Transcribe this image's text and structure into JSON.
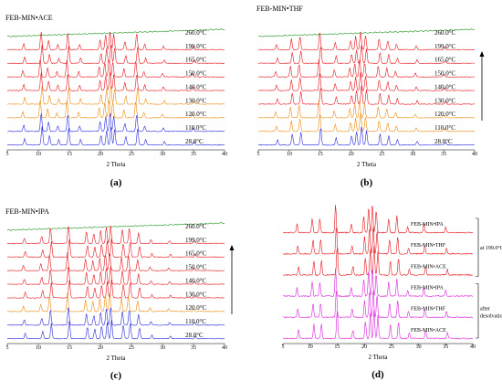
{
  "figure": {
    "panels": [
      {
        "id": "a",
        "sublabel": "(a)",
        "title": "FEB-MIN•ACE",
        "xlabel": "2 Theta",
        "ticks": [
          "5",
          "10",
          "15",
          "20",
          "25",
          "30",
          "35",
          "40"
        ],
        "traces": [
          {
            "label": "260.0°C",
            "color": "#1a8f1a",
            "amorphous": true
          },
          {
            "label": "199.0°C",
            "color": "#e8141c"
          },
          {
            "label": "165.0°C",
            "color": "#e8141c"
          },
          {
            "label": "150.0°C",
            "color": "#e8141c"
          },
          {
            "label": "140.0°C",
            "color": "#e8141c"
          },
          {
            "label": "130.0°C",
            "color": "#ee8a10"
          },
          {
            "label": "120.0°C",
            "color": "#ee8a10"
          },
          {
            "label": "110.0°C",
            "color": "#2a2ae0"
          },
          {
            "label": "28.0°C",
            "color": "#2a2ae0"
          }
        ],
        "peaks": [
          [
            7.5,
            0.35
          ],
          [
            10.3,
            1.0
          ],
          [
            11.5,
            0.5
          ],
          [
            13.0,
            0.3
          ],
          [
            14.6,
            0.95
          ],
          [
            16.5,
            0.3
          ],
          [
            19.8,
            0.55
          ],
          [
            20.7,
            0.8
          ],
          [
            21.4,
            1.0
          ],
          [
            22.0,
            0.85
          ],
          [
            23.8,
            0.45
          ],
          [
            25.7,
            0.9
          ],
          [
            27.0,
            0.3
          ],
          [
            30.0,
            0.2
          ],
          [
            34.8,
            0.2
          ]
        ]
      },
      {
        "id": "b",
        "sublabel": "(b)",
        "title": "FEB-MIN•THF",
        "xlabel": "2 Theta",
        "ticks": [
          "5",
          "10",
          "15",
          "20",
          "25",
          "30",
          "35",
          "40"
        ],
        "traces": [
          {
            "label": "260.0°C",
            "color": "#1a8f1a",
            "amorphous": true
          },
          {
            "label": "199.0°C",
            "color": "#e8141c"
          },
          {
            "label": "165.0°C",
            "color": "#e8141c"
          },
          {
            "label": "150.0°C",
            "color": "#e8141c"
          },
          {
            "label": "140.0°C",
            "color": "#e8141c"
          },
          {
            "label": "130.0°C",
            "color": "#e8141c"
          },
          {
            "label": "120.0°C",
            "color": "#ee8a10"
          },
          {
            "label": "110.0°C",
            "color": "#ee8a10"
          },
          {
            "label": "28.0°C",
            "color": "#2a2ae0"
          }
        ],
        "peaks": [
          [
            7.8,
            0.3
          ],
          [
            10.2,
            0.6
          ],
          [
            11.6,
            0.7
          ],
          [
            14.8,
            0.95
          ],
          [
            17.3,
            0.4
          ],
          [
            19.8,
            0.5
          ],
          [
            20.6,
            0.75
          ],
          [
            21.4,
            1.0
          ],
          [
            22.2,
            0.8
          ],
          [
            24.4,
            0.6
          ],
          [
            25.8,
            0.5
          ],
          [
            27.2,
            0.3
          ],
          [
            30.4,
            0.2
          ],
          [
            35.0,
            0.15
          ]
        ]
      },
      {
        "id": "c",
        "sublabel": "(c)",
        "title": "FEB-MIN•IPA",
        "xlabel": "2 Theta",
        "ticks": [
          "5",
          "10",
          "15",
          "20",
          "25",
          "30",
          "35",
          "40"
        ],
        "traces": [
          {
            "label": "260.0°C",
            "color": "#1a8f1a",
            "amorphous": true
          },
          {
            "label": "199.0°C",
            "color": "#e8141c"
          },
          {
            "label": "165.0°C",
            "color": "#e8141c"
          },
          {
            "label": "150.0°C",
            "color": "#e8141c"
          },
          {
            "label": "140.0°C",
            "color": "#e8141c"
          },
          {
            "label": "130.0°C",
            "color": "#e8141c"
          },
          {
            "label": "120.0°C",
            "color": "#ee8a10"
          },
          {
            "label": "110.0°C",
            "color": "#2a2ae0"
          },
          {
            "label": "28.0°C",
            "color": "#2a2ae0"
          }
        ],
        "peaks": [
          [
            7.6,
            0.3
          ],
          [
            10.4,
            0.4
          ],
          [
            11.8,
            0.85
          ],
          [
            14.7,
            1.0
          ],
          [
            17.6,
            0.65
          ],
          [
            18.8,
            0.55
          ],
          [
            19.9,
            0.7
          ],
          [
            20.8,
            0.9
          ],
          [
            21.5,
            1.0
          ],
          [
            23.4,
            0.75
          ],
          [
            24.5,
            0.85
          ],
          [
            26.0,
            0.6
          ],
          [
            28.0,
            0.2
          ],
          [
            31.0,
            0.15
          ],
          [
            35.0,
            0.15
          ]
        ]
      },
      {
        "id": "d",
        "sublabel": "(d)",
        "title": "",
        "xlabel": "2 Theta",
        "ticks": [
          "5",
          "10",
          "15",
          "20",
          "25",
          "30",
          "35",
          "40"
        ],
        "traces": [
          {
            "label": "FEB-MIN•IPA",
            "color": "#e8141c"
          },
          {
            "label": "FEB-MIN•THF",
            "color": "#e8141c"
          },
          {
            "label": "FEB-MIN•ACE",
            "color": "#e8141c"
          },
          {
            "label": "FEB-MIN•IPA",
            "color": "#dd22dd"
          },
          {
            "label": "FEB-MIN•THF",
            "color": "#dd22dd"
          },
          {
            "label": "FEB-MIN•ACE",
            "color": "#dd22dd"
          }
        ],
        "group_labels": [
          "at 199.0°C",
          "after desolvation"
        ],
        "peaks": [
          [
            7.6,
            0.3
          ],
          [
            10.4,
            0.5
          ],
          [
            11.8,
            0.5
          ],
          [
            14.7,
            1.0
          ],
          [
            17.6,
            0.3
          ],
          [
            19.9,
            0.6
          ],
          [
            20.8,
            0.9
          ],
          [
            21.5,
            1.0
          ],
          [
            22.2,
            0.8
          ],
          [
            24.5,
            0.5
          ],
          [
            26.0,
            0.6
          ],
          [
            28.0,
            0.2
          ],
          [
            31.0,
            0.3
          ],
          [
            35.0,
            0.2
          ]
        ]
      }
    ]
  },
  "chart_data": [
    {
      "type": "line",
      "title": "FEB-MIN•ACE",
      "xlabel": "2 Theta",
      "xlim": [
        5,
        40
      ],
      "series": [
        {
          "name": "260.0°C"
        },
        {
          "name": "199.0°C"
        },
        {
          "name": "165.0°C"
        },
        {
          "name": "150.0°C"
        },
        {
          "name": "140.0°C"
        },
        {
          "name": "130.0°C"
        },
        {
          "name": "120.0°C"
        },
        {
          "name": "110.0°C"
        },
        {
          "name": "28.0°C"
        }
      ]
    },
    {
      "type": "line",
      "title": "FEB-MIN•THF",
      "xlabel": "2 Theta",
      "xlim": [
        5,
        40
      ],
      "series": [
        {
          "name": "260.0°C"
        },
        {
          "name": "199.0°C"
        },
        {
          "name": "165.0°C"
        },
        {
          "name": "150.0°C"
        },
        {
          "name": "140.0°C"
        },
        {
          "name": "130.0°C"
        },
        {
          "name": "120.0°C"
        },
        {
          "name": "110.0°C"
        },
        {
          "name": "28.0°C"
        }
      ]
    },
    {
      "type": "line",
      "title": "FEB-MIN•IPA",
      "xlabel": "2 Theta",
      "xlim": [
        5,
        40
      ],
      "series": [
        {
          "name": "260.0°C"
        },
        {
          "name": "199.0°C"
        },
        {
          "name": "165.0°C"
        },
        {
          "name": "150.0°C"
        },
        {
          "name": "140.0°C"
        },
        {
          "name": "130.0°C"
        },
        {
          "name": "120.0°C"
        },
        {
          "name": "110.0°C"
        },
        {
          "name": "28.0°C"
        }
      ]
    },
    {
      "type": "line",
      "title": "",
      "xlabel": "2 Theta",
      "xlim": [
        5,
        40
      ],
      "series": [
        {
          "name": "FEB-MIN•IPA"
        },
        {
          "name": "FEB-MIN•THF"
        },
        {
          "name": "FEB-MIN•ACE"
        },
        {
          "name": "FEB-MIN•IPA"
        },
        {
          "name": "FEB-MIN•THF"
        },
        {
          "name": "FEB-MIN•ACE"
        }
      ],
      "annotations": [
        "at 199.0°C",
        "after desolvation"
      ]
    }
  ]
}
